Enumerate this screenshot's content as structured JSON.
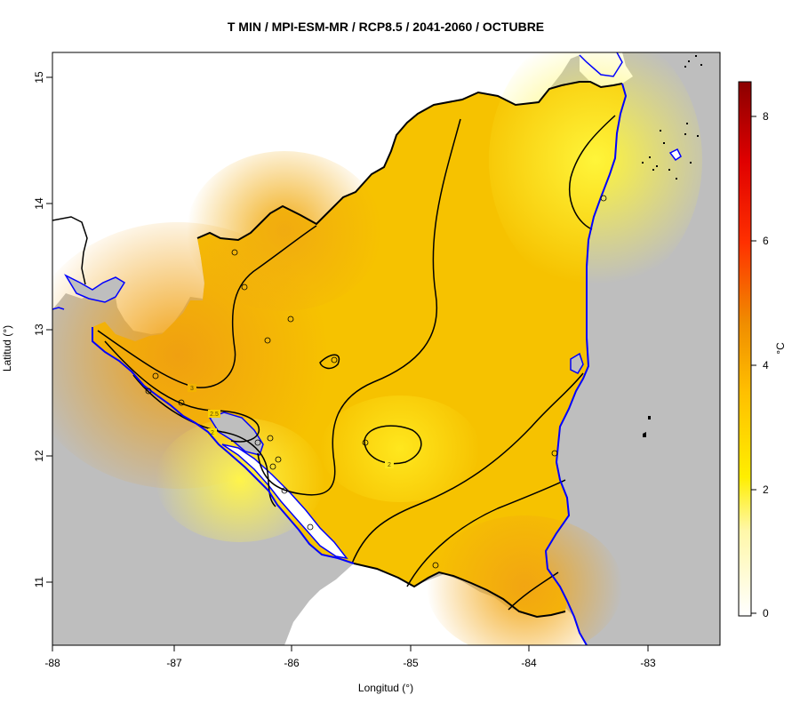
{
  "title": "T MIN / MPI-ESM-MR / RCP8.5 / 2041-2060 / OCTUBRE",
  "x_axis": {
    "label": "Longitud (°)",
    "ticks": [
      "-88",
      "-87",
      "-86",
      "-85",
      "-84",
      "-83"
    ]
  },
  "y_axis": {
    "label": "Latitud (°)",
    "ticks": [
      "15",
      "14",
      "13",
      "12",
      "11"
    ]
  },
  "colorbar": {
    "unit": "°C",
    "ticks": [
      "8",
      "6",
      "4",
      "2",
      "0"
    ],
    "range": [
      0,
      8.6
    ]
  },
  "contour_labels": [
    "3",
    "2.5",
    "2",
    "2"
  ],
  "colors": {
    "sea": "#bebebe",
    "coast": "#0000ff",
    "border": "#000000",
    "field_high": "#f2a30c",
    "field_mid": "#f7c800",
    "field_low": "#ffef33"
  }
}
